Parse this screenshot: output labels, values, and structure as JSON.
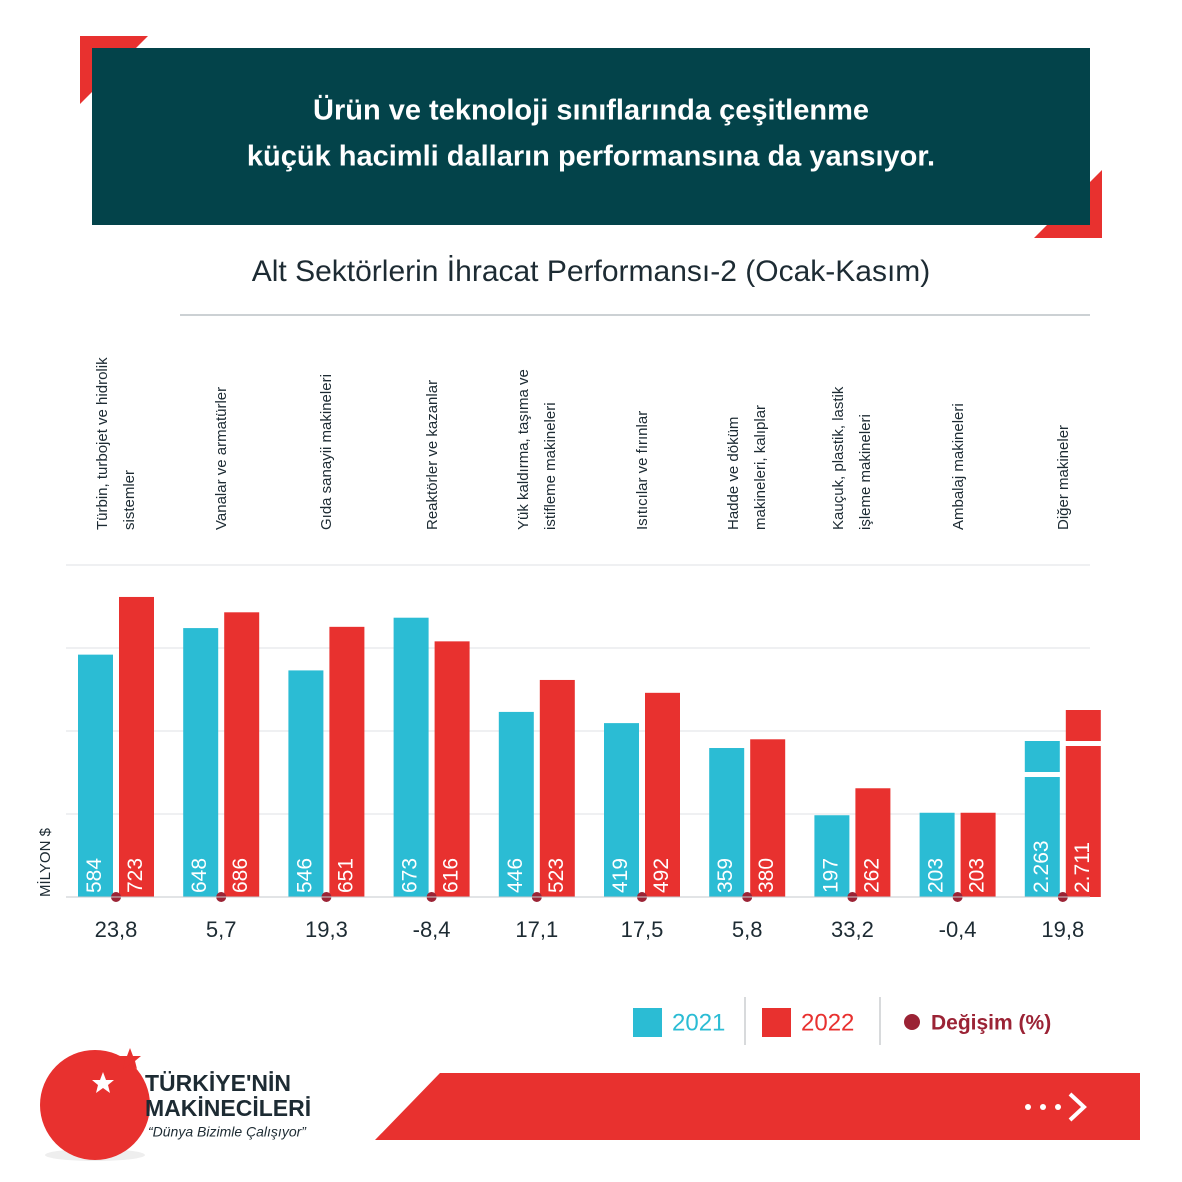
{
  "header": {
    "lines": [
      "Ürün ve teknoloji sınıflarında çeşitlenme",
      "küçük hacimli dalların performansına da yansıyor."
    ]
  },
  "chart_data": {
    "type": "bar",
    "title": "Alt Sektörlerin İhracat Performansı-2 (Ocak-Kasım)",
    "y_label": "MİLYON $",
    "categories": [
      "Türbin, turbojet ve hidrolik sistemler",
      "Vanalar ve armatürler",
      "Gıda sanayii makineleri",
      "Reaktörler ve kazanlar",
      "Yük kaldırma, taşıma ve istifleme makineleri",
      "Isıtıcılar ve fırınlar",
      "Hadde ve döküm makineleri, kalıplar",
      "Kauçuk, plastik, lastik işleme makineleri",
      "Ambalaj makineleri",
      "Diğer makineler"
    ],
    "series": [
      {
        "name": "2021",
        "color": "#2bbcd4",
        "values": [
          584,
          648,
          546,
          673,
          446,
          419,
          359,
          197,
          203,
          2263
        ],
        "value_labels": [
          "584",
          "648",
          "546",
          "673",
          "446",
          "419",
          "359",
          "197",
          "203",
          "2.263"
        ]
      },
      {
        "name": "2022",
        "color": "#e8312f",
        "values": [
          723,
          686,
          651,
          616,
          523,
          492,
          380,
          262,
          203,
          2711
        ],
        "value_labels": [
          "723",
          "686",
          "651",
          "616",
          "523",
          "492",
          "380",
          "262",
          "203",
          "2.711"
        ]
      }
    ],
    "change": {
      "name": "Değişim (%)",
      "color": "#9b2335",
      "values": [
        23.8,
        5.7,
        19.3,
        -8.4,
        17.1,
        17.5,
        5.8,
        33.2,
        -0.4,
        19.8
      ],
      "value_labels": [
        "23,8",
        "5,7",
        "19,3",
        "-8,4",
        "17,1",
        "17,5",
        "5,8",
        "33,2",
        "-0,4",
        "19,8"
      ]
    },
    "ylim": [
      0,
      800
    ],
    "yticks": [
      0,
      200,
      400,
      600,
      800
    ],
    "grid": true
  },
  "footer": {
    "brand_lines": [
      "TÜRKİYE'NİN",
      "MAKİNECİLERİ"
    ],
    "slogan": "“Dünya Bizimle Çalışıyor”"
  }
}
